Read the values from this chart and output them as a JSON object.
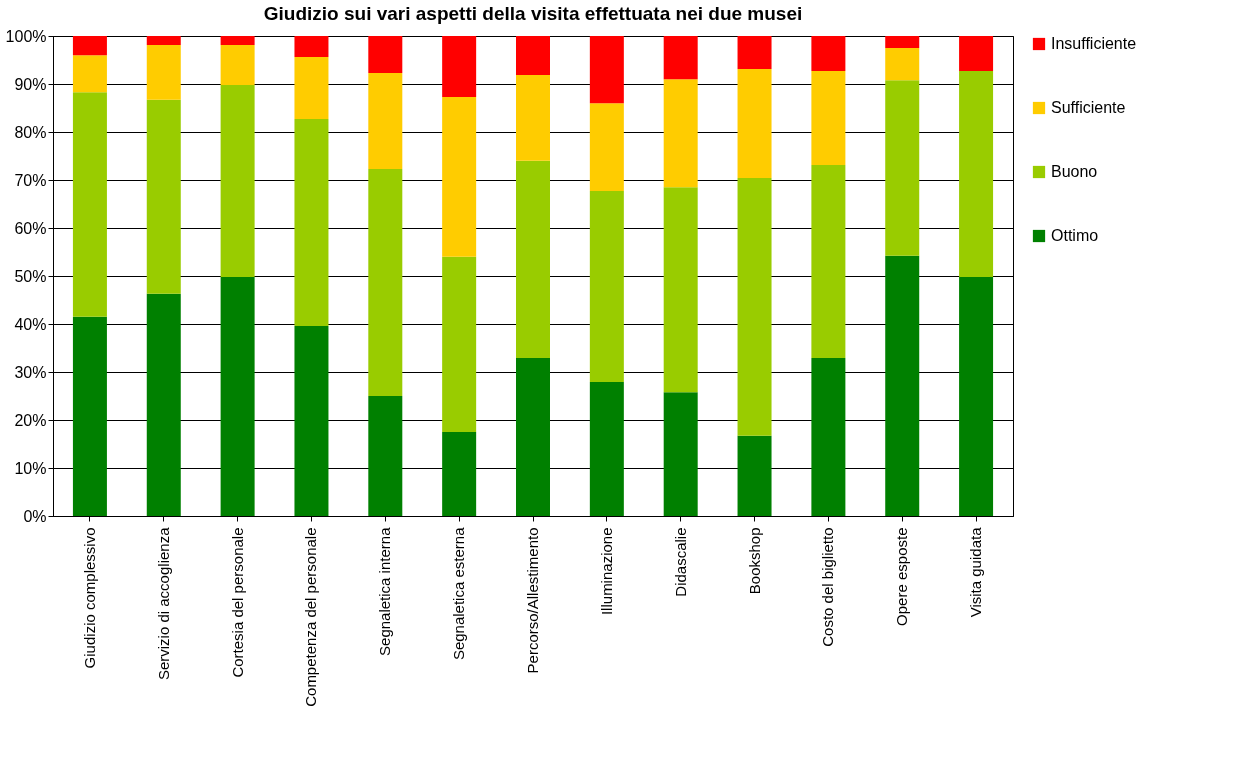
{
  "chart_data": {
    "type": "bar",
    "stacked": true,
    "title": "Giudizio sui vari aspetti della visita effettuata nei due musei",
    "categories": [
      "Giudizio complessivo",
      "Servizio di accoglienza",
      "Cortesia del personale",
      "Competenza del personale",
      "Segnaletica interna",
      "Segnaletica esterna",
      "Percorso/Allestimento",
      "Illuminazione",
      "Didascalie",
      "Bookshop",
      "Costo del biglietto",
      "Opere esposte",
      "Visita guidata"
    ],
    "series": [
      {
        "name": "Ottimo",
        "color": "#008000",
        "values": [
          41.5,
          46.3,
          49.8,
          39.6,
          25.0,
          17.5,
          32.9,
          27.9,
          25.8,
          16.7,
          32.9,
          54.2,
          49.8
        ]
      },
      {
        "name": "Buono",
        "color": "#99cc00",
        "values": [
          46.8,
          40.4,
          40.0,
          43.1,
          47.3,
          36.5,
          41.1,
          39.8,
          42.7,
          53.7,
          40.2,
          36.6,
          42.9
        ]
      },
      {
        "name": "Sufficiente",
        "color": "#ffcc00",
        "values": [
          7.7,
          11.4,
          8.3,
          12.9,
          20.0,
          33.3,
          17.9,
          18.3,
          22.5,
          22.7,
          19.6,
          6.7,
          0
        ]
      },
      {
        "name": "Insufficiente",
        "color": "#ff0000",
        "values": [
          4.0,
          1.9,
          1.9,
          4.4,
          7.7,
          12.7,
          8.1,
          14.0,
          9.0,
          6.9,
          7.3,
          2.5,
          7.3
        ]
      }
    ],
    "ylim": [
      0,
      100
    ],
    "yticks": [
      {
        "value": 0,
        "label": "0%"
      },
      {
        "value": 10,
        "label": "10%"
      },
      {
        "value": 20,
        "label": "20%"
      },
      {
        "value": 30,
        "label": "30%"
      },
      {
        "value": 40,
        "label": "40%"
      },
      {
        "value": 50,
        "label": "50%"
      },
      {
        "value": 60,
        "label": "60%"
      },
      {
        "value": 70,
        "label": "70%"
      },
      {
        "value": 80,
        "label": "80%"
      },
      {
        "value": 90,
        "label": "90%"
      },
      {
        "value": 100,
        "label": "100%"
      }
    ],
    "grid": "y",
    "legend": "right"
  }
}
